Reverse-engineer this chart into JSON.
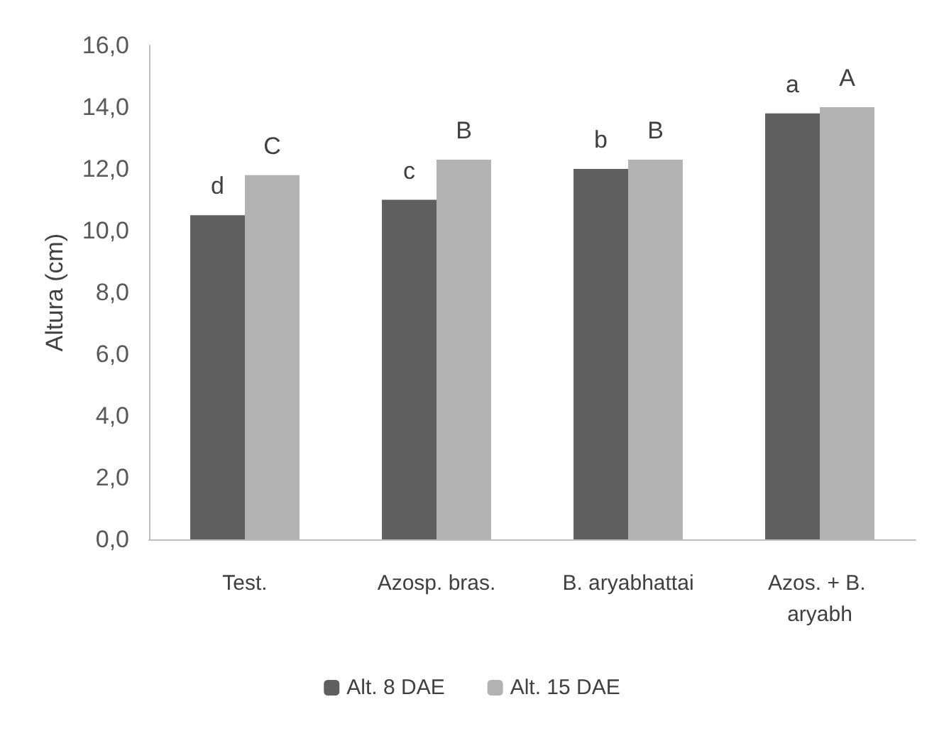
{
  "chart_data": {
    "type": "bar",
    "ylabel": "Altura (cm)",
    "categories": [
      "Test.",
      "Azosp. bras.",
      "B. aryabhattai",
      "Azos. + B. aryabh"
    ],
    "series": [
      {
        "name": "Alt. 8 DAE",
        "color": "#5f5f5f",
        "values": [
          10.5,
          11.0,
          12.0,
          13.8
        ],
        "value_labels": [
          "d",
          "c",
          "b",
          "a"
        ]
      },
      {
        "name": "Alt. 15 DAE",
        "color": "#b2b2b2",
        "values": [
          11.8,
          12.3,
          12.3,
          14.0
        ],
        "value_labels": [
          "C",
          "B",
          "B",
          "A"
        ]
      }
    ],
    "ylim": [
      0,
      16
    ],
    "yticks": [
      {
        "value": 0,
        "label": "0,0"
      },
      {
        "value": 2,
        "label": "2,0"
      },
      {
        "value": 4,
        "label": "4,0"
      },
      {
        "value": 6,
        "label": "6,0"
      },
      {
        "value": 8,
        "label": "8,0"
      },
      {
        "value": 10,
        "label": "10,0"
      },
      {
        "value": 12,
        "label": "12,0"
      },
      {
        "value": 14,
        "label": "14,0"
      },
      {
        "value": 16,
        "label": "16,0"
      }
    ],
    "grid": false,
    "legend": "bottom"
  }
}
